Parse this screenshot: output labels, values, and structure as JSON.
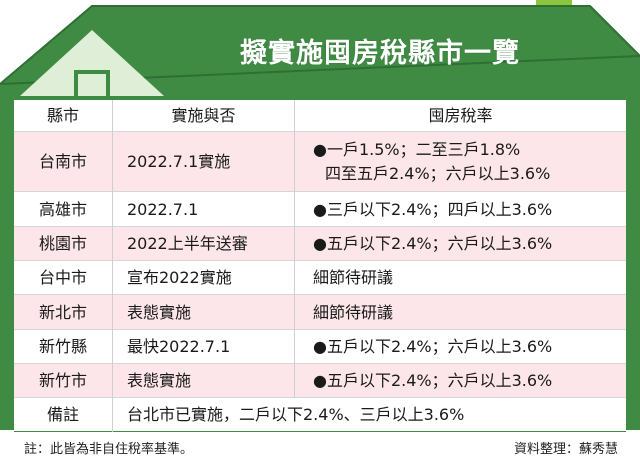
{
  "title": "擬實施囤房稅縣市一覽",
  "colors": {
    "roof_green": "#3f8b43",
    "roof_light": "#dfeed6",
    "chimney": "#8cc63f",
    "row_pink": "#fce6e9"
  },
  "table": {
    "headers": [
      "縣市",
      "實施與否",
      "囤房稅率"
    ],
    "rows": [
      {
        "city": "台南市",
        "status": "2022.7.1實施",
        "rate_line1": "●一戶1.5%；二至三戶1.8%",
        "rate_line2": "四至五戶2.4%；六戶以上3.6%"
      },
      {
        "city": "高雄市",
        "status": "2022.7.1",
        "rate_line1": "●三戶以下2.4%；四戶以上3.6%"
      },
      {
        "city": "桃園市",
        "status": "2022上半年送審",
        "rate_line1": "●五戶以下2.4%；六戶以上3.6%"
      },
      {
        "city": "台中市",
        "status": "宣布2022實施",
        "rate_line1": "細節待研議"
      },
      {
        "city": "新北市",
        "status": "表態實施",
        "rate_line1": "細節待研議"
      },
      {
        "city": "新竹縣",
        "status": "最快2022.7.1",
        "rate_line1": "●五戶以下2.4%；六戶以上3.6%"
      },
      {
        "city": "新竹市",
        "status": "表態實施",
        "rate_line1": "●五戶以下2.4%；六戶以上3.6%"
      }
    ],
    "remark": {
      "label": "備註",
      "text": "台北市已實施，二戶以下2.4%、三戶以上3.6%"
    }
  },
  "footer": {
    "note": "註：此皆為非自住稅率基準。",
    "credit": "資料整理：蘇秀慧"
  }
}
